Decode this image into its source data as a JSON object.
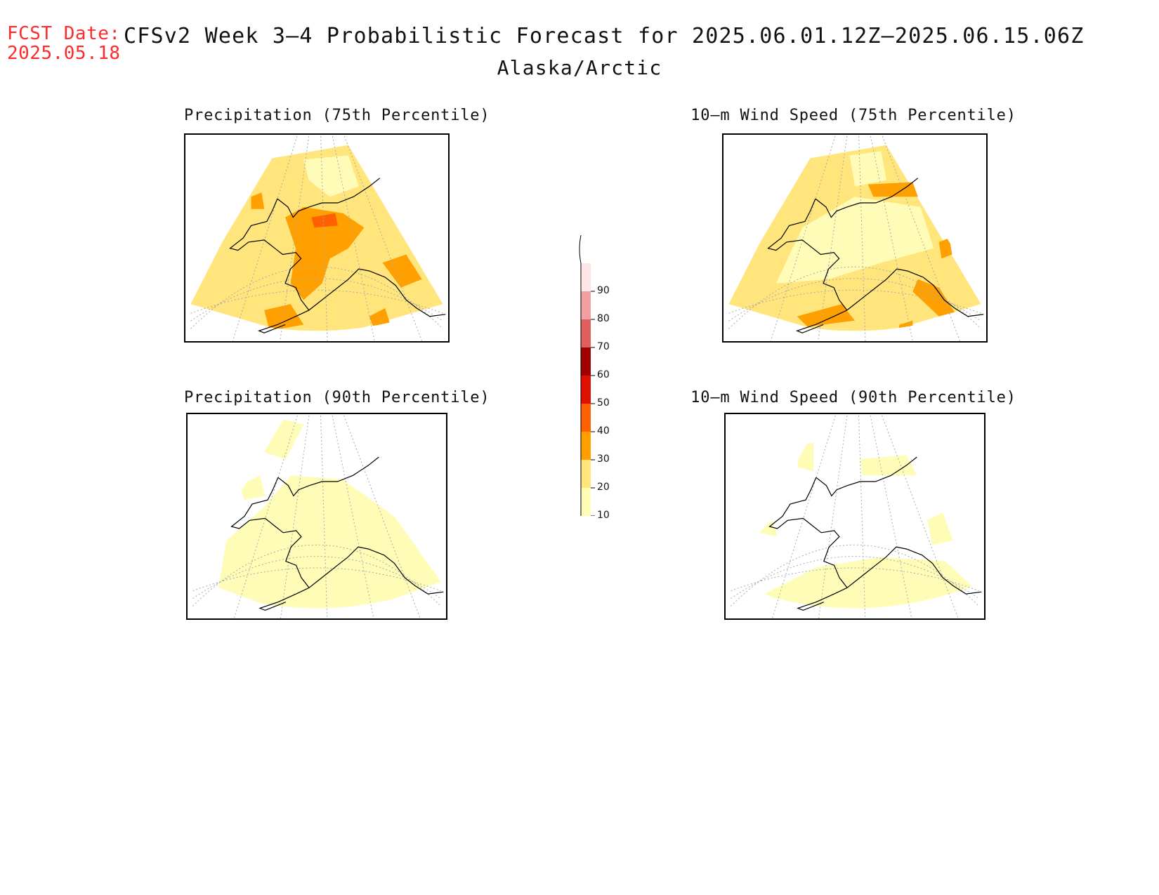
{
  "header": {
    "fcst_label": "FCST Date:",
    "fcst_date": "2025.05.18",
    "title": "CFSv2 Week 3–4 Probabilistic Forecast for 2025.06.01.12Z–2025.06.15.06Z",
    "region": "Alaska/Arctic"
  },
  "panels": [
    {
      "title": "Precipitation (75th Percentile)",
      "max_level": 40
    },
    {
      "title": "10–m Wind Speed (75th Percentile)",
      "max_level": 40
    },
    {
      "title": "Precipitation (90th Percentile)",
      "max_level": 10
    },
    {
      "title": "10–m Wind Speed (90th Percentile)",
      "max_level": 10
    }
  ],
  "colorbar": {
    "levels": [
      "10",
      "20",
      "30",
      "40",
      "50",
      "60",
      "70",
      "80",
      "90"
    ],
    "colors": [
      "#fffcb8",
      "#ffe57c",
      "#ffa000",
      "#ff6000",
      "#e01000",
      "#a00000",
      "#e06060",
      "#f0a0a0",
      "#ffe6e6"
    ]
  }
}
